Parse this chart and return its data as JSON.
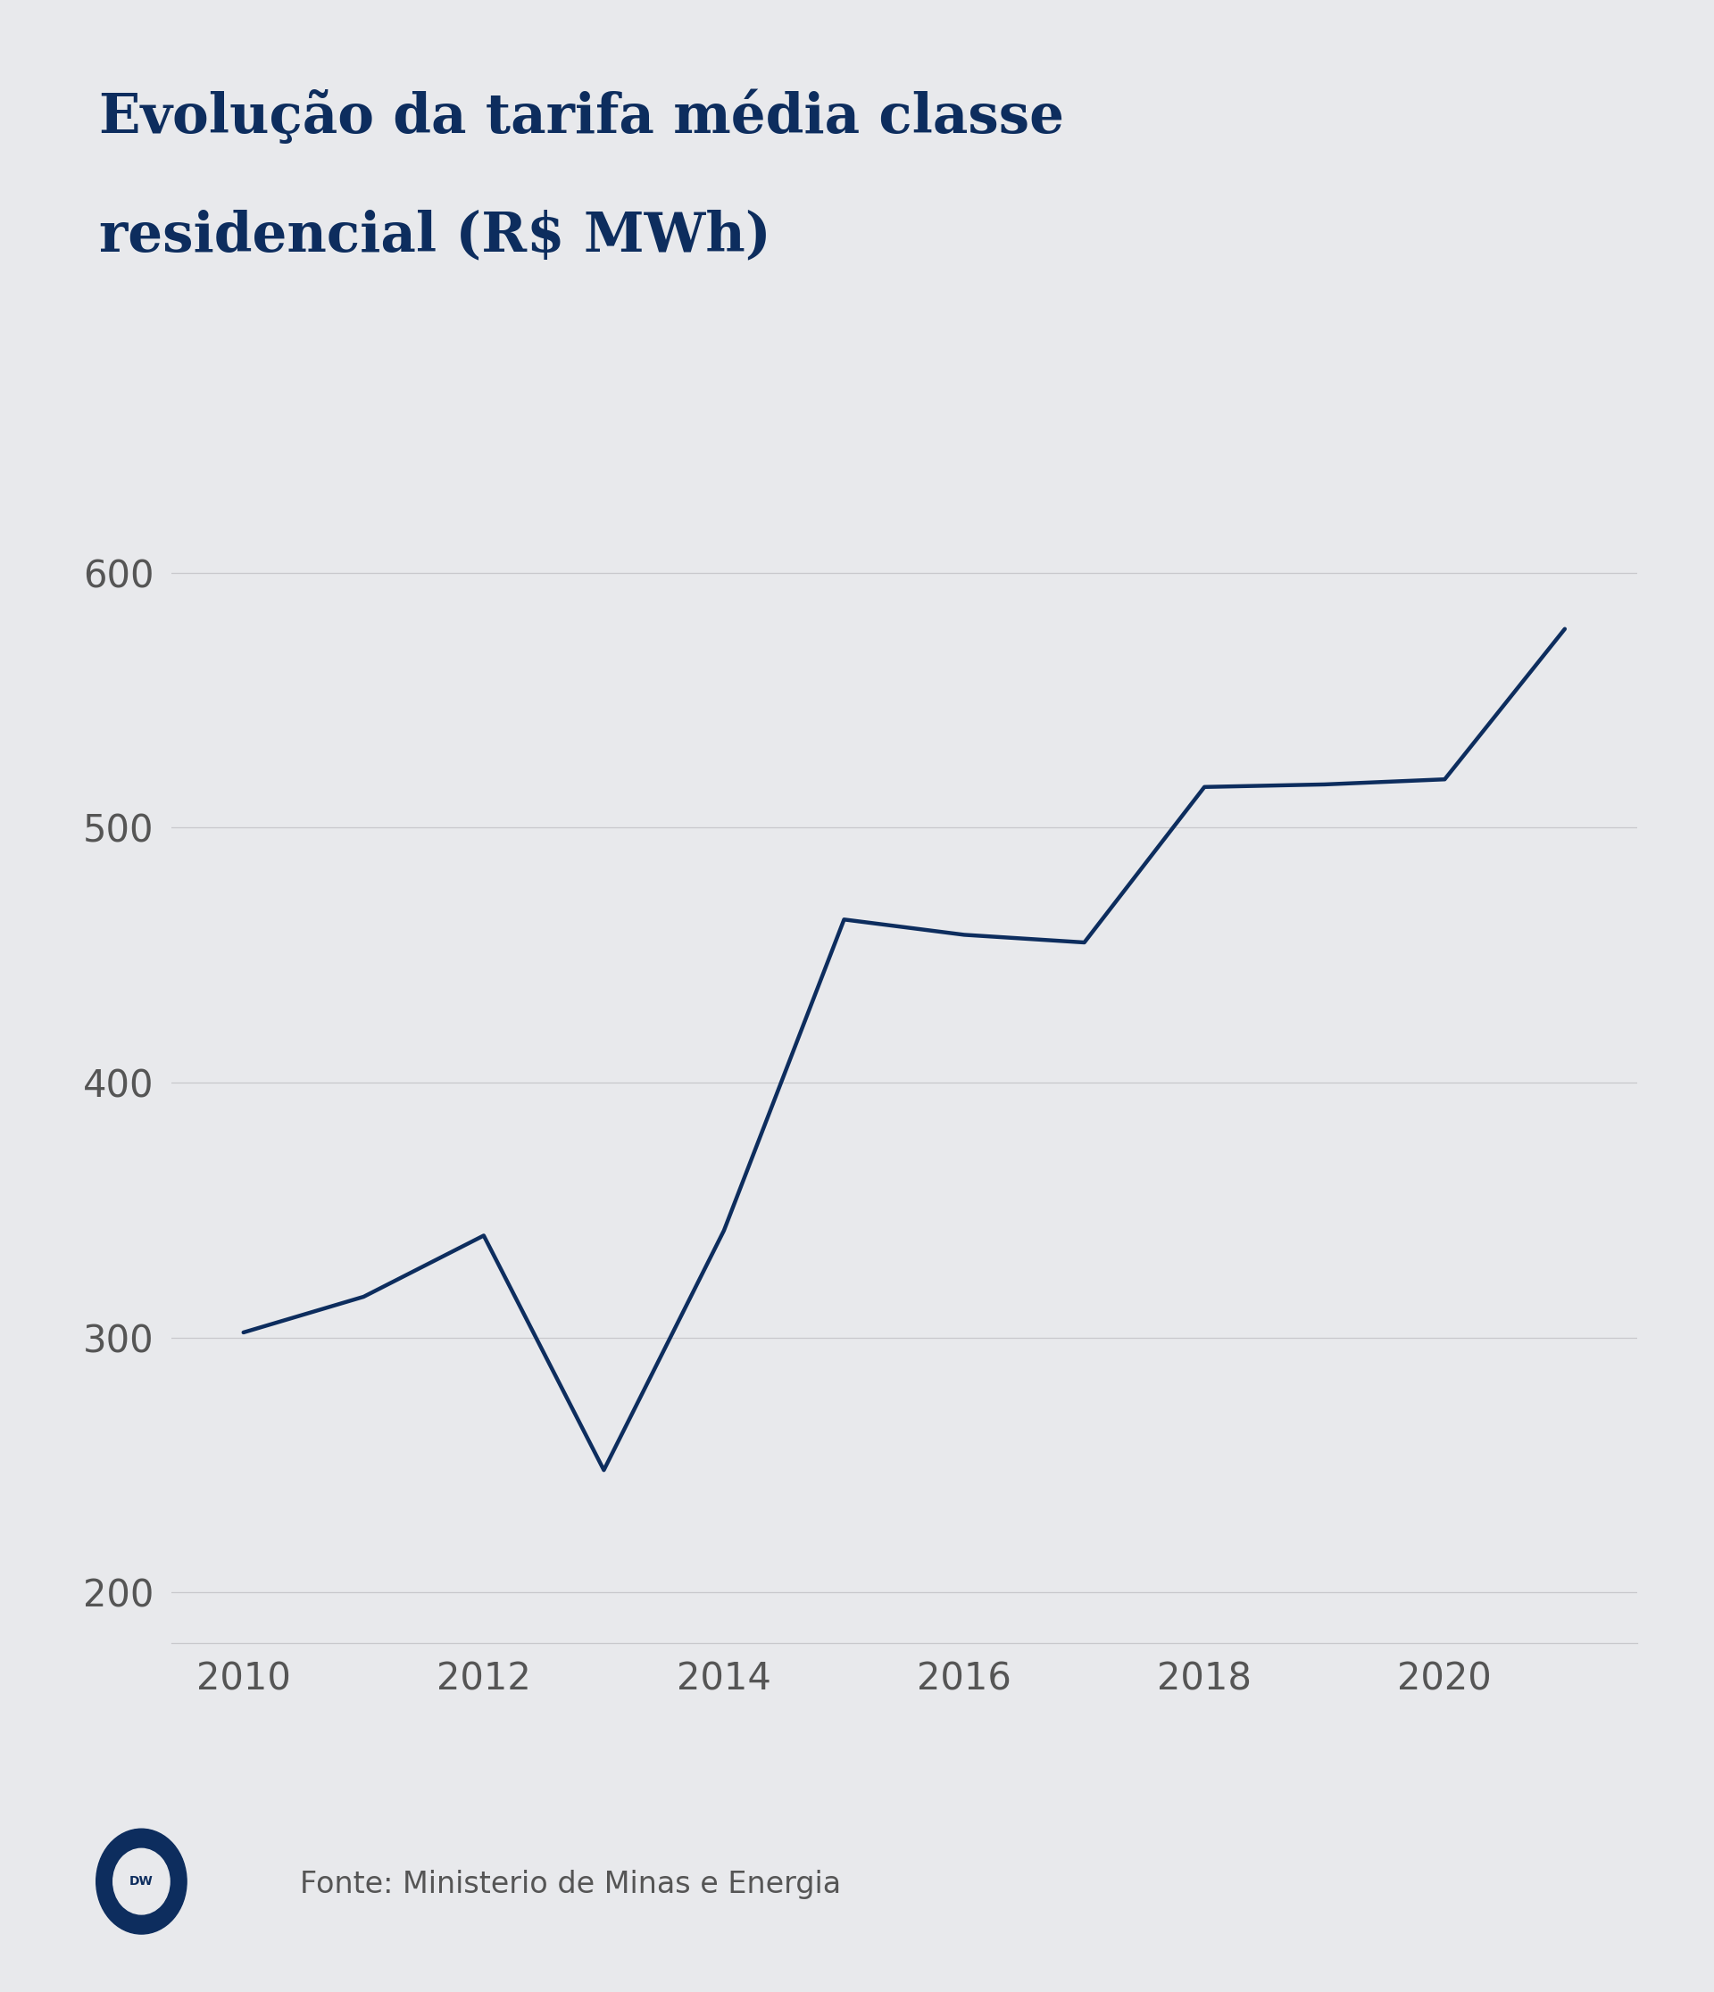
{
  "title_line1": "Evolução da tarifa média classe",
  "title_line2": "residencial (R$ MWh)",
  "years": [
    2010,
    2011,
    2012,
    2013,
    2014,
    2015,
    2016,
    2017,
    2018,
    2019,
    2020,
    2021
  ],
  "values": [
    302,
    316,
    340,
    248,
    342,
    464,
    458,
    455,
    516,
    517,
    519,
    578
  ],
  "line_color": "#0d2d5e",
  "background_color": "#e8e9ec",
  "title_color": "#0d2d5e",
  "axis_label_color": "#555555",
  "grid_color": "#c8c8cc",
  "yticks": [
    200,
    300,
    400,
    500,
    600
  ],
  "xticks": [
    2010,
    2012,
    2014,
    2016,
    2018,
    2020
  ],
  "ylim": [
    180,
    645
  ],
  "xlim": [
    2009.4,
    2021.6
  ],
  "source_text": "Fonte: Ministerio de Minas e Energia",
  "line_width": 3.2,
  "title_fontsize": 44,
  "tick_fontsize": 30,
  "source_fontsize": 24
}
